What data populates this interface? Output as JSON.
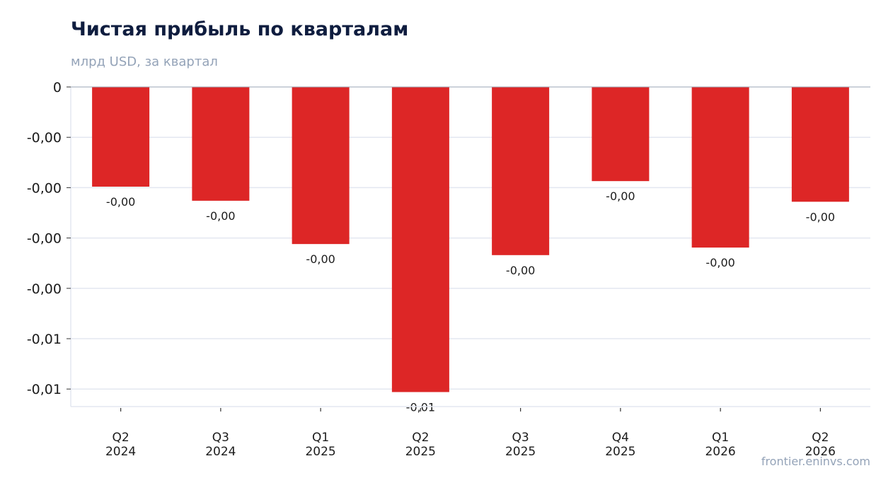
{
  "header": {
    "title": "Чистая прибыль по кварталам",
    "subtitle": "млрд USD, за квартал"
  },
  "footer": {
    "source": "frontier.eninvs.com"
  },
  "colors": {
    "bar": "#dd2626",
    "title": "#0f1d3f",
    "muted": "#94a3b8",
    "grid": "#e3e7f0"
  },
  "chart_data": {
    "type": "bar",
    "title": "Чистая прибыль по кварталам",
    "subtitle": "млрд USD, за квартал",
    "categories": [
      "Q2 2024",
      "Q3 2024",
      "Q1 2025",
      "Q2 2025",
      "Q3 2025",
      "Q4 2025",
      "Q1 2026",
      "Q2 2026"
    ],
    "category_labels": [
      [
        "Q2",
        "2024"
      ],
      [
        "Q3",
        "2024"
      ],
      [
        "Q1",
        "2025"
      ],
      [
        "Q2",
        "2025"
      ],
      [
        "Q3",
        "2025"
      ],
      [
        "Q4",
        "2025"
      ],
      [
        "Q1",
        "2026"
      ],
      [
        "Q2",
        "2026"
      ]
    ],
    "values": [
      -0.00198,
      -0.00226,
      -0.00312,
      -0.00606,
      -0.00334,
      -0.00187,
      -0.00319,
      -0.00228
    ],
    "data_labels": [
      "-0,00",
      "-0,00",
      "-0,00",
      "-0,01",
      "-0,00",
      "-0,00",
      "-0,00",
      "-0,00"
    ],
    "y_ticks": [
      0,
      -0.001,
      -0.002,
      -0.003,
      -0.004,
      -0.005,
      -0.006
    ],
    "y_tick_labels": [
      "0",
      "-0,00",
      "-0,00",
      "-0,00",
      "-0,00",
      "-0,01",
      "-0,01"
    ],
    "ylim": [
      -0.00637,
      0
    ],
    "grid": true,
    "legend": "none"
  }
}
